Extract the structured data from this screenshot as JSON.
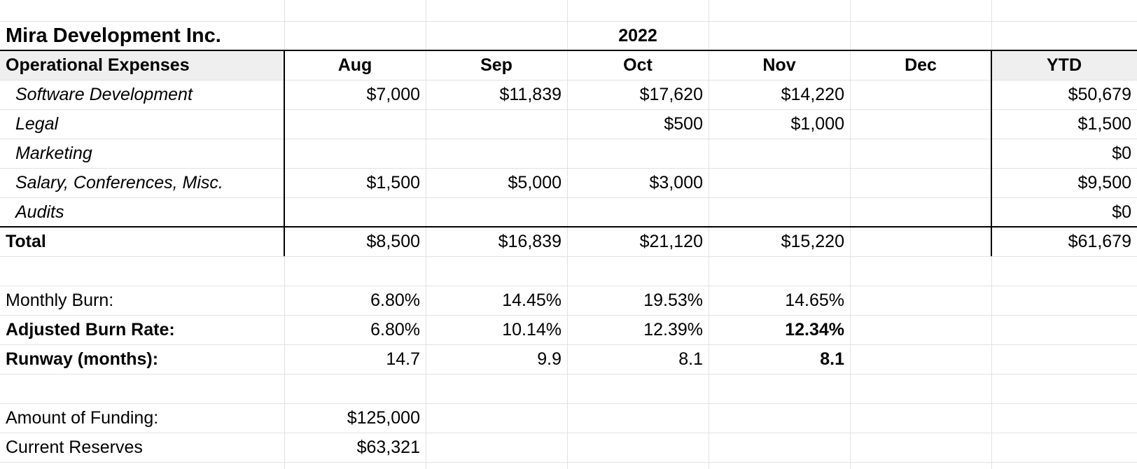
{
  "company": "Mira Development Inc.",
  "year": "2022",
  "header": {
    "section_label": "Operational Expenses",
    "months": [
      "Aug",
      "Sep",
      "Oct",
      "Nov",
      "Dec"
    ],
    "ytd_label": "YTD"
  },
  "expenses": [
    {
      "label": "Software Development",
      "values": [
        "$7,000",
        "$11,839",
        "$17,620",
        "$14,220",
        ""
      ],
      "ytd": "$50,679"
    },
    {
      "label": "Legal",
      "values": [
        "",
        "",
        "$500",
        "$1,000",
        ""
      ],
      "ytd": "$1,500"
    },
    {
      "label": "Marketing",
      "values": [
        "",
        "",
        "",
        "",
        ""
      ],
      "ytd": "$0"
    },
    {
      "label": "Salary, Conferences, Misc.",
      "values": [
        "$1,500",
        "$5,000",
        "$3,000",
        "",
        ""
      ],
      "ytd": "$9,500"
    },
    {
      "label": "Audits",
      "values": [
        "",
        "",
        "",
        "",
        ""
      ],
      "ytd": "$0"
    }
  ],
  "total": {
    "label": "Total",
    "values": [
      "$8,500",
      "$16,839",
      "$21,120",
      "$15,220",
      ""
    ],
    "ytd": "$61,679"
  },
  "metrics": [
    {
      "label": "Monthly Burn:",
      "bold_label": false,
      "values": [
        "6.80%",
        "14.45%",
        "19.53%",
        "14.65%",
        ""
      ],
      "bold_last": false
    },
    {
      "label": "Adjusted Burn Rate:",
      "bold_label": true,
      "values": [
        "6.80%",
        "10.14%",
        "12.39%",
        "12.34%",
        ""
      ],
      "bold_last": true
    },
    {
      "label": "Runway (months):",
      "bold_label": true,
      "values": [
        "14.7",
        "9.9",
        "8.1",
        "8.1",
        ""
      ],
      "bold_last": true
    }
  ],
  "funding": [
    {
      "label": "Amount of Funding:",
      "value": "$125,000"
    },
    {
      "label": "Current Reserves",
      "value": "$63,321"
    }
  ]
}
